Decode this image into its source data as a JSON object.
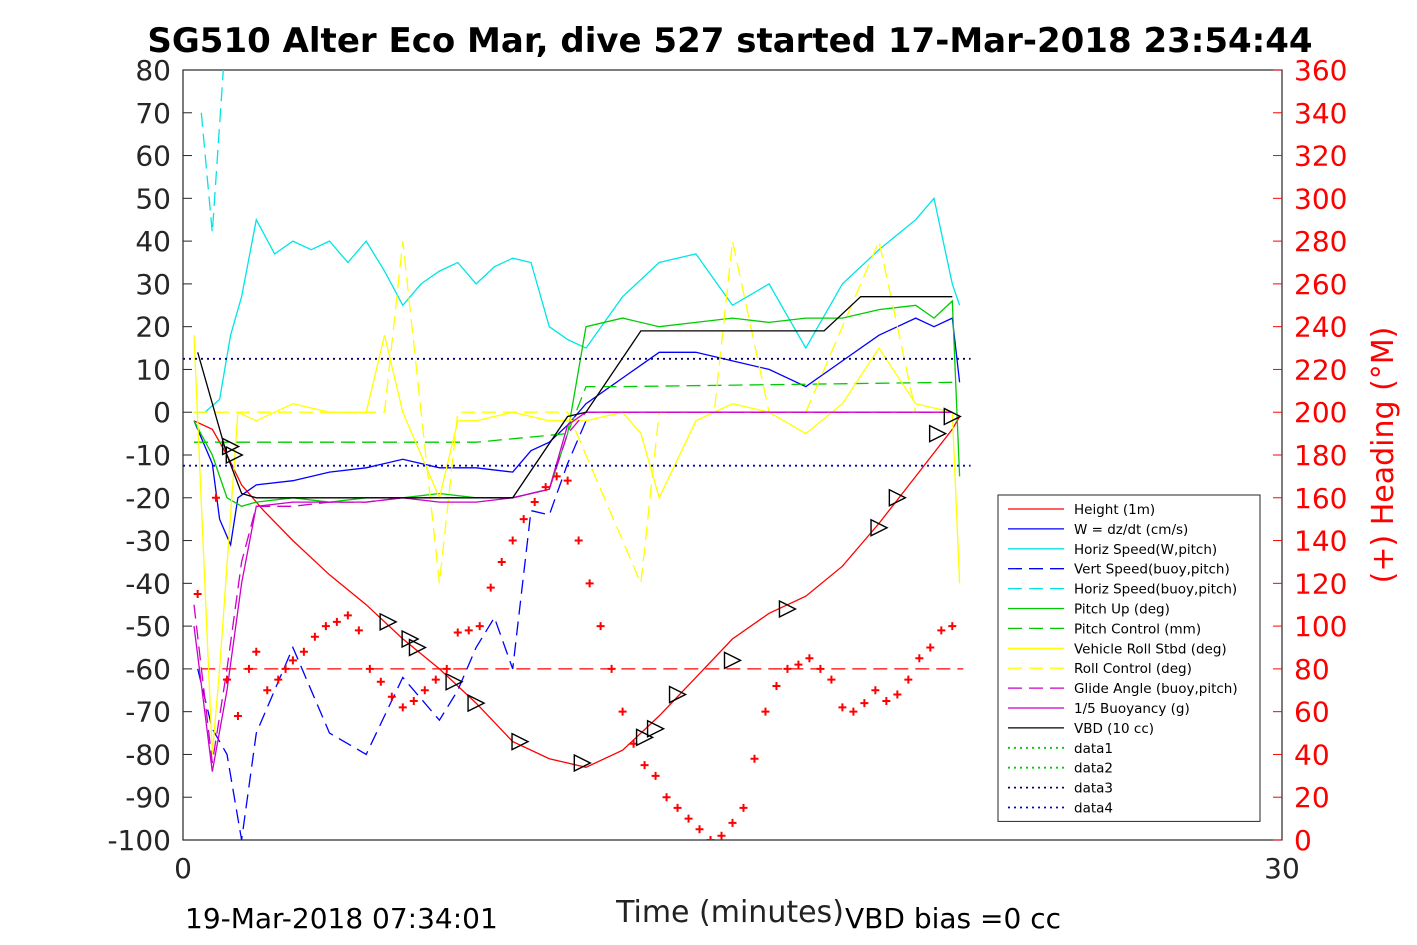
{
  "chart_data": {
    "type": "line",
    "title": "SG510 Alter Eco Mar, dive 527 started 17-Mar-2018 23:54:44",
    "xlabel": "Time (minutes)",
    "ylabel_right": "(+) Heading (°M)",
    "xlim": [
      0,
      30
    ],
    "ylim_left": [
      -100,
      80
    ],
    "ylim_right": [
      0,
      360
    ],
    "x_ticks": [
      "0",
      "30"
    ],
    "y_ticks_left": [
      "80",
      "70",
      "60",
      "50",
      "40",
      "30",
      "20",
      "10",
      "0",
      "-10",
      "-20",
      "-30",
      "-40",
      "-50",
      "-60",
      "-70",
      "-80",
      "-90",
      "-100"
    ],
    "y_ticks_right": [
      "360",
      "340",
      "320",
      "300",
      "280",
      "260",
      "240",
      "220",
      "200",
      "180",
      "160",
      "140",
      "120",
      "100",
      "80",
      "60",
      "40",
      "20",
      "0"
    ],
    "footer_left": "19-Mar-2018 07:34:01",
    "footer_right": "VBD bias =0 cc",
    "legend_position": "lower-right",
    "colors": {
      "red": "#ff0000",
      "blue": "#0000ff",
      "cyan": "#00e5e5",
      "green": "#00cc00",
      "yellow": "#ffff00",
      "magenta": "#cc00cc",
      "black": "#000000"
    },
    "series": [
      {
        "name": "Height (1m)",
        "color": "#ff0000",
        "style": "solid",
        "x": [
          0.3,
          0.8,
          1.2,
          1.6,
          2.2,
          3.0,
          4.0,
          5.0,
          6.0,
          7.0,
          8.0,
          9.0,
          10.0,
          11.0,
          12.0,
          13.0,
          14.0,
          15.0,
          16.0,
          17.0,
          18.0,
          19.0,
          20.0,
          21.0,
          21.2
        ],
        "y": [
          -2,
          -4,
          -10,
          -17,
          -23,
          -30,
          -38,
          -45,
          -53,
          -60,
          -68,
          -77,
          -81,
          -83,
          -79,
          -71,
          -62,
          -53,
          -47,
          -43,
          -36,
          -26,
          -15,
          -4,
          -1
        ]
      },
      {
        "name": "W = dz/dt (cm/s)",
        "color": "#0000ff",
        "style": "solid",
        "x": [
          0.3,
          0.8,
          1.0,
          1.3,
          1.5,
          2.0,
          3.0,
          4.0,
          5.0,
          6.0,
          7.0,
          8.0,
          9.0,
          9.5,
          10.0,
          10.5,
          11.0,
          12.0,
          13.0,
          14.0,
          15.0,
          16.0,
          17.0,
          18.0,
          19.0,
          20.0,
          20.5,
          21.0,
          21.2
        ],
        "y": [
          -2,
          -12,
          -25,
          -31,
          -20,
          -17,
          -16,
          -14,
          -13,
          -11,
          -13,
          -13,
          -14,
          -9,
          -7,
          -3,
          2,
          8,
          14,
          14,
          12,
          10,
          6,
          12,
          18,
          22,
          20,
          22,
          7
        ]
      },
      {
        "name": "Horiz Speed(W,pitch)",
        "color": "#00e5e5",
        "style": "solid",
        "x": [
          0.3,
          0.6,
          1.0,
          1.3,
          1.6,
          2.0,
          2.5,
          3.0,
          3.5,
          4.0,
          4.5,
          5.0,
          5.5,
          6.0,
          6.5,
          7.0,
          7.5,
          8.0,
          8.5,
          9.0,
          9.5,
          10.0,
          10.5,
          11.0,
          12.0,
          13.0,
          14.0,
          15.0,
          16.0,
          17.0,
          18.0,
          19.0,
          20.0,
          20.5,
          21.0,
          21.2
        ],
        "y": [
          0,
          0,
          3,
          18,
          27,
          45,
          37,
          40,
          38,
          40,
          35,
          40,
          33,
          25,
          30,
          33,
          35,
          30,
          34,
          36,
          35,
          20,
          17,
          15,
          27,
          35,
          37,
          25,
          30,
          15,
          30,
          38,
          45,
          50,
          30,
          25
        ]
      },
      {
        "name": "Vert Speed(buoy,pitch)",
        "color": "#0000ff",
        "style": "dashed",
        "x": [
          0.4,
          0.8,
          1.2,
          1.6,
          2.0,
          3.0,
          4.0,
          5.0,
          6.0,
          7.0,
          7.5,
          8.0,
          8.5,
          9.0,
          9.5,
          10.0,
          10.5,
          11.0
        ],
        "y": [
          -60,
          -74,
          -80,
          -100,
          -75,
          -55,
          -75,
          -80,
          -62,
          -72,
          -65,
          -55,
          -48,
          -60,
          -23,
          -24,
          -12,
          -2
        ]
      },
      {
        "name": "Horiz Speed(buoy,pitch)",
        "color": "#00e5e5",
        "style": "dashed",
        "x": [
          0.5,
          0.8,
          1.1
        ],
        "y": [
          70,
          42,
          80
        ]
      },
      {
        "name": "Pitch Up (deg)",
        "color": "#00cc00",
        "style": "solid",
        "x": [
          0.3,
          0.8,
          1.2,
          1.6,
          2.0,
          3.0,
          4.0,
          5.0,
          6.0,
          7.0,
          8.0,
          9.0,
          10.0,
          10.5,
          11.0,
          12.0,
          13.0,
          14.0,
          15.0,
          16.0,
          17.0,
          18.0,
          19.0,
          20.0,
          20.5,
          21.0,
          21.2
        ],
        "y": [
          -2,
          -10,
          -20,
          -22,
          -21,
          -20,
          -21,
          -20,
          -20,
          -19,
          -20,
          -20,
          -18,
          -5,
          20,
          22,
          20,
          21,
          22,
          21,
          22,
          22,
          24,
          25,
          22,
          26,
          -15
        ]
      },
      {
        "name": "Pitch Control (mm)",
        "color": "#00cc00",
        "style": "dashed",
        "x": [
          0.3,
          1.5,
          8.0,
          10.5,
          11.0,
          12.0,
          21.0
        ],
        "y": [
          -7,
          -7,
          -7,
          -5,
          6,
          6,
          7
        ]
      },
      {
        "name": "Vehicle Roll Stbd (deg)",
        "color": "#ffff00",
        "style": "solid",
        "x": [
          0.3,
          0.8,
          1.0,
          1.5,
          2.0,
          3.0,
          4.0,
          5.0,
          5.5,
          6.0,
          7.0,
          7.5,
          8.0,
          9.0,
          10.0,
          11.0,
          12.0,
          12.5,
          13.0,
          14.0,
          15.0,
          16.0,
          17.0,
          18.0,
          19.0,
          20.0,
          21.0,
          21.2
        ],
        "y": [
          18,
          -80,
          -60,
          0,
          -2,
          2,
          0,
          0,
          18,
          0,
          -20,
          -2,
          -2,
          0,
          -2,
          -2,
          0,
          -5,
          -20,
          -2,
          2,
          0,
          -5,
          2,
          15,
          2,
          0,
          -40
        ]
      },
      {
        "name": "Roll Control (deg)",
        "color": "#ffff00",
        "style": "dashed",
        "x": [
          0.3,
          5.5,
          6.0,
          7.0,
          7.5,
          10.5,
          12.5,
          13.0,
          14.5,
          15.0,
          16.0,
          17.0,
          19.0,
          20.0,
          21.0
        ],
        "y": [
          0,
          0,
          40,
          -40,
          0,
          0,
          -40,
          0,
          0,
          40,
          0,
          0,
          40,
          0,
          0
        ]
      },
      {
        "name": "Glide Angle (buoy,pitch)",
        "color": "#cc00cc",
        "style": "dashed",
        "x": [
          0.3,
          0.8,
          1.2,
          1.6,
          2.0,
          3.0,
          4.0,
          5.0,
          6.0,
          7.0,
          8.0,
          9.0,
          10.0,
          10.5,
          11.0,
          21.0
        ],
        "y": [
          -45,
          -82,
          -60,
          -35,
          -22,
          -22,
          -21,
          -21,
          -20,
          -20,
          -20,
          -20,
          -18,
          -5,
          0,
          0
        ]
      },
      {
        "name": "1/5 Buoyancy (g)",
        "color": "#cc00cc",
        "style": "solid",
        "x": [
          0.3,
          0.8,
          1.2,
          1.6,
          2.0,
          3.0,
          4.0,
          5.0,
          6.0,
          7.0,
          8.0,
          9.0,
          10.0,
          10.5,
          11.0,
          21.0
        ],
        "y": [
          -50,
          -84,
          -65,
          -40,
          -22,
          -21,
          -21,
          -21,
          -20,
          -21,
          -21,
          -20,
          -18,
          -3,
          0,
          0
        ]
      },
      {
        "name": "VBD (10 cc)",
        "color": "#000000",
        "style": "solid",
        "x": [
          0.4,
          1.2,
          1.6,
          2.0,
          9.0,
          10.5,
          11.0,
          12.5,
          17.5,
          18.0,
          18.5,
          21.0
        ],
        "y": [
          14,
          -10,
          -19,
          -20,
          -20,
          -1,
          0,
          19,
          19,
          23,
          27,
          27
        ]
      },
      {
        "name": "data1",
        "color": "#00cc00",
        "style": "dotted",
        "x": [],
        "y": []
      },
      {
        "name": "data2",
        "color": "#00cc00",
        "style": "dotted",
        "x": [],
        "y": []
      },
      {
        "name": "data3",
        "color": "#000066",
        "style": "dotted",
        "x": [
          0,
          21.5
        ],
        "y": [
          12.5,
          12.5
        ]
      },
      {
        "name": "data4",
        "color": "#0000cc",
        "style": "dotted",
        "x": [
          0,
          21.5
        ],
        "y": [
          -12.5,
          -12.5
        ]
      }
    ],
    "heading": {
      "axis": "right",
      "color": "#ff0000",
      "marker": "+",
      "reference": 80,
      "x": [
        0.4,
        0.9,
        1.2,
        1.5,
        1.8,
        2.0,
        2.3,
        2.6,
        2.8,
        3.0,
        3.3,
        3.6,
        3.9,
        4.2,
        4.5,
        4.8,
        5.1,
        5.4,
        5.7,
        6.0,
        6.3,
        6.6,
        6.9,
        7.2,
        7.5,
        7.8,
        8.1,
        8.4,
        8.7,
        9.0,
        9.3,
        9.6,
        9.9,
        10.2,
        10.5,
        10.8,
        11.1,
        11.4,
        11.7,
        12.0,
        12.3,
        12.6,
        12.9,
        13.2,
        13.5,
        13.8,
        14.1,
        14.4,
        14.7,
        15.0,
        15.3,
        15.6,
        15.9,
        16.2,
        16.5,
        16.8,
        17.1,
        17.4,
        17.7,
        18.0,
        18.3,
        18.6,
        18.9,
        19.2,
        19.5,
        19.8,
        20.1,
        20.4,
        20.7,
        21.0
      ],
      "y": [
        115,
        160,
        75,
        58,
        80,
        88,
        70,
        75,
        80,
        84,
        88,
        95,
        100,
        102,
        105,
        98,
        80,
        74,
        67,
        62,
        65,
        70,
        75,
        80,
        97,
        98,
        100,
        118,
        130,
        140,
        150,
        158,
        165,
        170,
        168,
        140,
        120,
        100,
        80,
        60,
        45,
        35,
        30,
        20,
        15,
        10,
        5,
        0,
        2,
        8,
        15,
        38,
        60,
        72,
        80,
        82,
        85,
        80,
        75,
        62,
        60,
        64,
        70,
        65,
        68,
        75,
        85,
        90,
        98,
        100
      ]
    },
    "markers": {
      "style": "triangle",
      "x": [
        1.3,
        1.4,
        5.6,
        6.2,
        6.4,
        7.4,
        8.0,
        9.2,
        10.9,
        12.6,
        12.9,
        13.5,
        15.0,
        16.5,
        19.0,
        19.5,
        20.6,
        21.0
      ],
      "y": [
        -8,
        -10,
        -49,
        -53,
        -55,
        -63,
        -68,
        -77,
        -82,
        -76,
        -74,
        -66,
        -58,
        -46,
        -27,
        -20,
        -5,
        -1
      ]
    }
  }
}
